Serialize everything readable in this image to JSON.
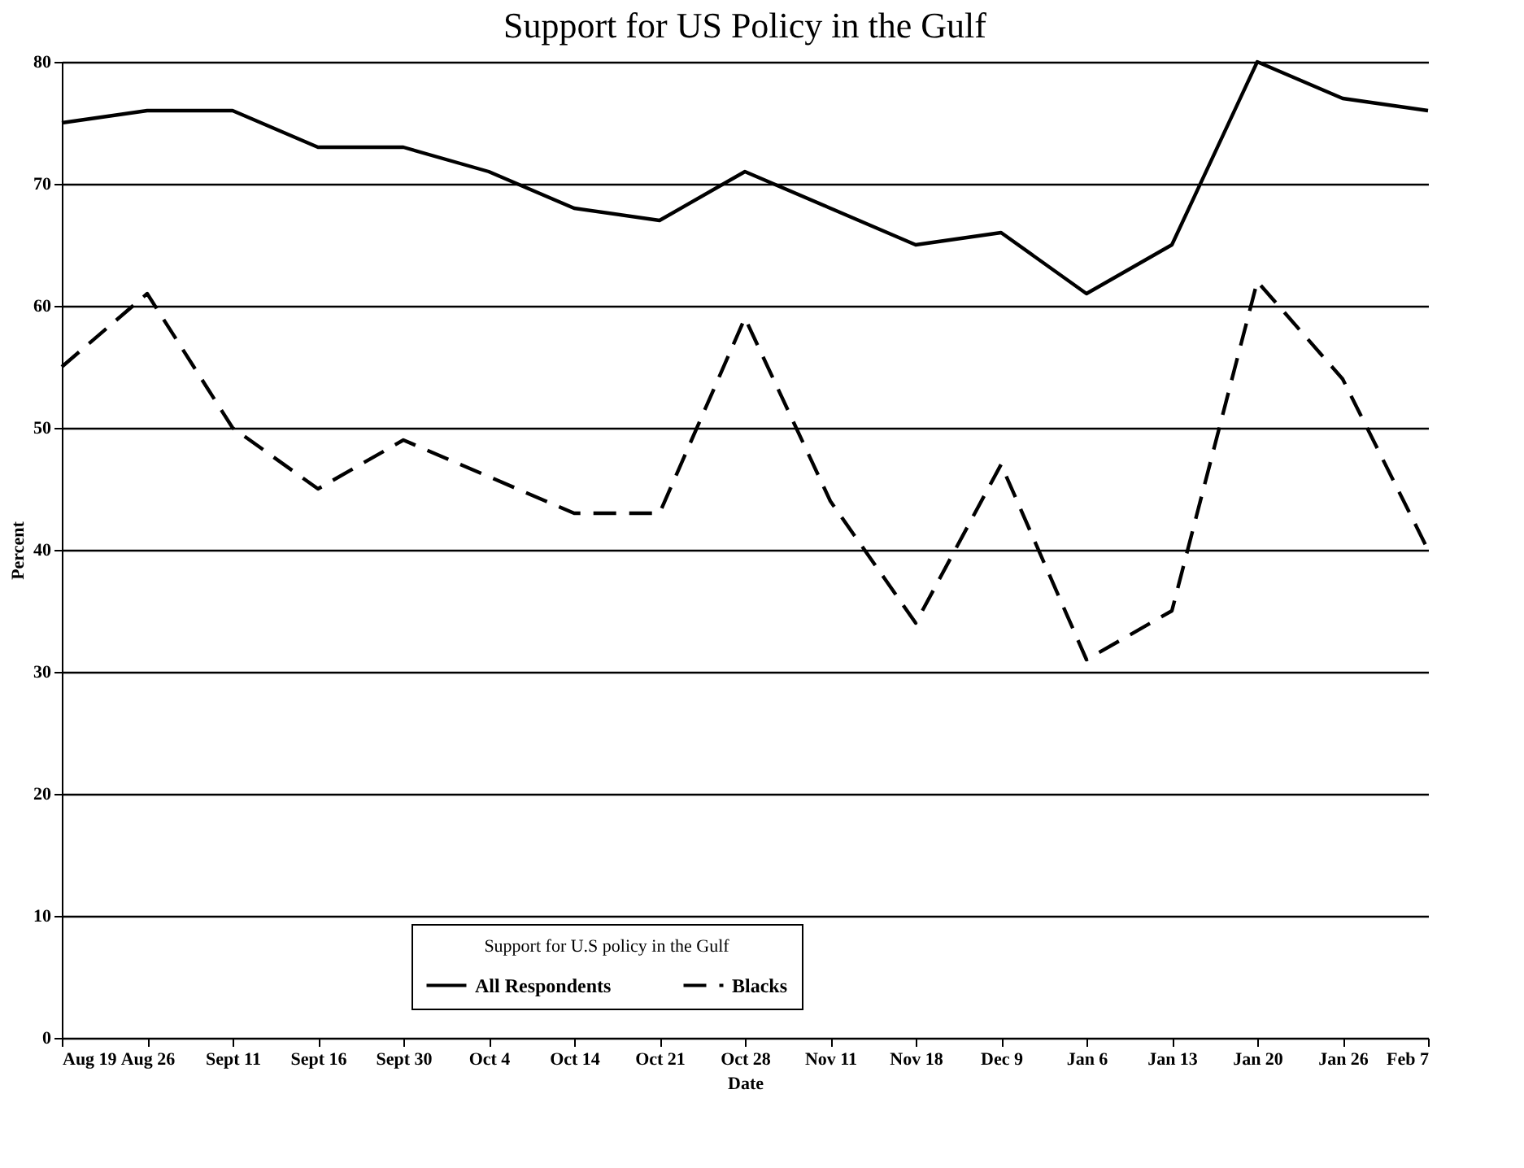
{
  "chart_data": {
    "type": "line",
    "title": "Support for US Policy in the Gulf",
    "xlabel": "Date",
    "ylabel": "Percent",
    "legend_title": "Support for U.S policy in the Gulf",
    "categories": [
      "Aug 19",
      "Aug 26",
      "Sept 11",
      "Sept 16",
      "Sept 30",
      "Oct 4",
      "Oct 14",
      "Oct 21",
      "Oct 28",
      "Nov 11",
      "Nov 18",
      "Dec 9",
      "Jan 6",
      "Jan 13",
      "Jan 20",
      "Jan 26",
      "Feb 7"
    ],
    "series": [
      {
        "name": "All Respondents",
        "color": "#000000",
        "line_style": "solid",
        "values": [
          75,
          76,
          76,
          73,
          73,
          71,
          68,
          67,
          71,
          68,
          65,
          66,
          61,
          65,
          80,
          77,
          76
        ]
      },
      {
        "name": "Blacks",
        "color": "#000000",
        "line_style": "dashed",
        "values": [
          55,
          61,
          50,
          45,
          49,
          46,
          43,
          43,
          59,
          44,
          34,
          47,
          31,
          35,
          62,
          54,
          40
        ]
      }
    ],
    "ylim": [
      0,
      80
    ],
    "yticks": [
      0,
      10,
      20,
      30,
      40,
      50,
      60,
      70,
      80
    ],
    "grid": "y",
    "legend": "bottom",
    "marker": "none"
  }
}
